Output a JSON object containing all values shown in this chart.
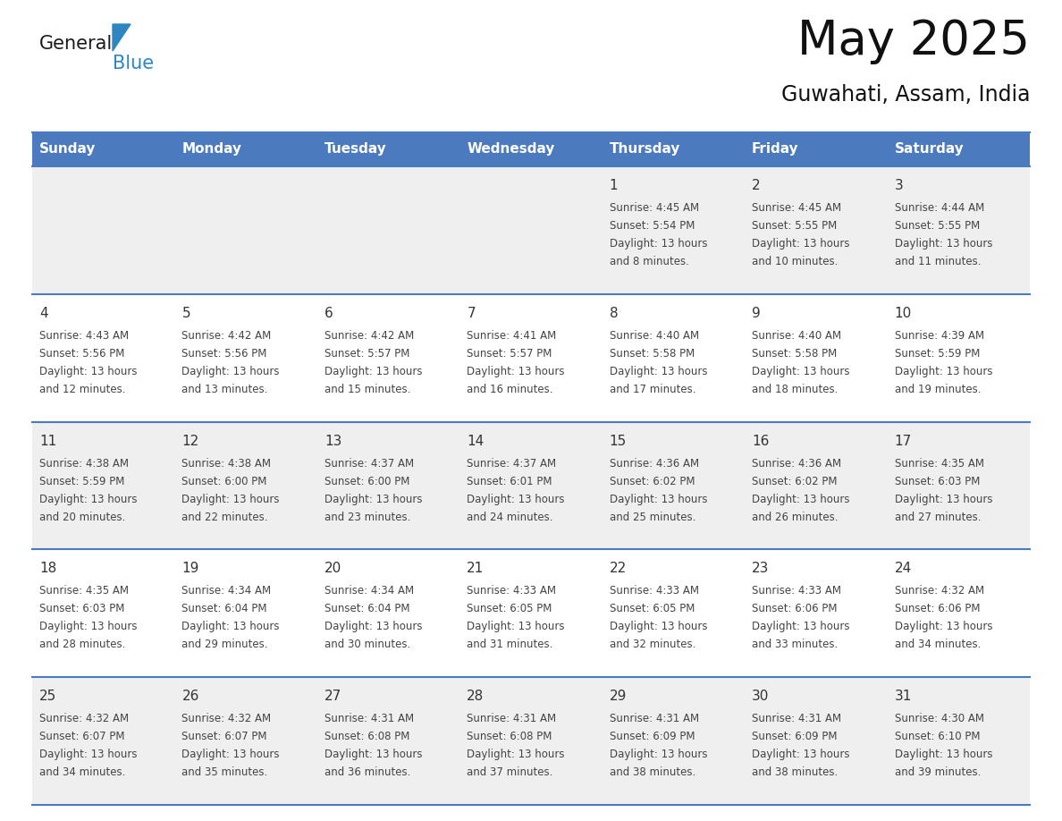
{
  "title": "May 2025",
  "subtitle": "Guwahati, Assam, India",
  "header_bg": "#4B7BBE",
  "header_text_color": "#FFFFFF",
  "days_of_week": [
    "Sunday",
    "Monday",
    "Tuesday",
    "Wednesday",
    "Thursday",
    "Friday",
    "Saturday"
  ],
  "odd_row_bg": "#EFEFEF",
  "even_row_bg": "#FFFFFF",
  "line_color": "#4B7BBE",
  "day_number_color": "#333333",
  "detail_text_color": "#444444",
  "calendar_data": [
    [
      null,
      null,
      null,
      null,
      {
        "day": "1",
        "sunrise": "4:45 AM",
        "sunset": "5:54 PM",
        "daylight_h": "13 hours",
        "daylight_m": "and 8 minutes."
      },
      {
        "day": "2",
        "sunrise": "4:45 AM",
        "sunset": "5:55 PM",
        "daylight_h": "13 hours",
        "daylight_m": "and 10 minutes."
      },
      {
        "day": "3",
        "sunrise": "4:44 AM",
        "sunset": "5:55 PM",
        "daylight_h": "13 hours",
        "daylight_m": "and 11 minutes."
      }
    ],
    [
      {
        "day": "4",
        "sunrise": "4:43 AM",
        "sunset": "5:56 PM",
        "daylight_h": "13 hours",
        "daylight_m": "and 12 minutes."
      },
      {
        "day": "5",
        "sunrise": "4:42 AM",
        "sunset": "5:56 PM",
        "daylight_h": "13 hours",
        "daylight_m": "and 13 minutes."
      },
      {
        "day": "6",
        "sunrise": "4:42 AM",
        "sunset": "5:57 PM",
        "daylight_h": "13 hours",
        "daylight_m": "and 15 minutes."
      },
      {
        "day": "7",
        "sunrise": "4:41 AM",
        "sunset": "5:57 PM",
        "daylight_h": "13 hours",
        "daylight_m": "and 16 minutes."
      },
      {
        "day": "8",
        "sunrise": "4:40 AM",
        "sunset": "5:58 PM",
        "daylight_h": "13 hours",
        "daylight_m": "and 17 minutes."
      },
      {
        "day": "9",
        "sunrise": "4:40 AM",
        "sunset": "5:58 PM",
        "daylight_h": "13 hours",
        "daylight_m": "and 18 minutes."
      },
      {
        "day": "10",
        "sunrise": "4:39 AM",
        "sunset": "5:59 PM",
        "daylight_h": "13 hours",
        "daylight_m": "and 19 minutes."
      }
    ],
    [
      {
        "day": "11",
        "sunrise": "4:38 AM",
        "sunset": "5:59 PM",
        "daylight_h": "13 hours",
        "daylight_m": "and 20 minutes."
      },
      {
        "day": "12",
        "sunrise": "4:38 AM",
        "sunset": "6:00 PM",
        "daylight_h": "13 hours",
        "daylight_m": "and 22 minutes."
      },
      {
        "day": "13",
        "sunrise": "4:37 AM",
        "sunset": "6:00 PM",
        "daylight_h": "13 hours",
        "daylight_m": "and 23 minutes."
      },
      {
        "day": "14",
        "sunrise": "4:37 AM",
        "sunset": "6:01 PM",
        "daylight_h": "13 hours",
        "daylight_m": "and 24 minutes."
      },
      {
        "day": "15",
        "sunrise": "4:36 AM",
        "sunset": "6:02 PM",
        "daylight_h": "13 hours",
        "daylight_m": "and 25 minutes."
      },
      {
        "day": "16",
        "sunrise": "4:36 AM",
        "sunset": "6:02 PM",
        "daylight_h": "13 hours",
        "daylight_m": "and 26 minutes."
      },
      {
        "day": "17",
        "sunrise": "4:35 AM",
        "sunset": "6:03 PM",
        "daylight_h": "13 hours",
        "daylight_m": "and 27 minutes."
      }
    ],
    [
      {
        "day": "18",
        "sunrise": "4:35 AM",
        "sunset": "6:03 PM",
        "daylight_h": "13 hours",
        "daylight_m": "and 28 minutes."
      },
      {
        "day": "19",
        "sunrise": "4:34 AM",
        "sunset": "6:04 PM",
        "daylight_h": "13 hours",
        "daylight_m": "and 29 minutes."
      },
      {
        "day": "20",
        "sunrise": "4:34 AM",
        "sunset": "6:04 PM",
        "daylight_h": "13 hours",
        "daylight_m": "and 30 minutes."
      },
      {
        "day": "21",
        "sunrise": "4:33 AM",
        "sunset": "6:05 PM",
        "daylight_h": "13 hours",
        "daylight_m": "and 31 minutes."
      },
      {
        "day": "22",
        "sunrise": "4:33 AM",
        "sunset": "6:05 PM",
        "daylight_h": "13 hours",
        "daylight_m": "and 32 minutes."
      },
      {
        "day": "23",
        "sunrise": "4:33 AM",
        "sunset": "6:06 PM",
        "daylight_h": "13 hours",
        "daylight_m": "and 33 minutes."
      },
      {
        "day": "24",
        "sunrise": "4:32 AM",
        "sunset": "6:06 PM",
        "daylight_h": "13 hours",
        "daylight_m": "and 34 minutes."
      }
    ],
    [
      {
        "day": "25",
        "sunrise": "4:32 AM",
        "sunset": "6:07 PM",
        "daylight_h": "13 hours",
        "daylight_m": "and 34 minutes."
      },
      {
        "day": "26",
        "sunrise": "4:32 AM",
        "sunset": "6:07 PM",
        "daylight_h": "13 hours",
        "daylight_m": "and 35 minutes."
      },
      {
        "day": "27",
        "sunrise": "4:31 AM",
        "sunset": "6:08 PM",
        "daylight_h": "13 hours",
        "daylight_m": "and 36 minutes."
      },
      {
        "day": "28",
        "sunrise": "4:31 AM",
        "sunset": "6:08 PM",
        "daylight_h": "13 hours",
        "daylight_m": "and 37 minutes."
      },
      {
        "day": "29",
        "sunrise": "4:31 AM",
        "sunset": "6:09 PM",
        "daylight_h": "13 hours",
        "daylight_m": "and 38 minutes."
      },
      {
        "day": "30",
        "sunrise": "4:31 AM",
        "sunset": "6:09 PM",
        "daylight_h": "13 hours",
        "daylight_m": "and 38 minutes."
      },
      {
        "day": "31",
        "sunrise": "4:30 AM",
        "sunset": "6:10 PM",
        "daylight_h": "13 hours",
        "daylight_m": "and 39 minutes."
      }
    ]
  ]
}
